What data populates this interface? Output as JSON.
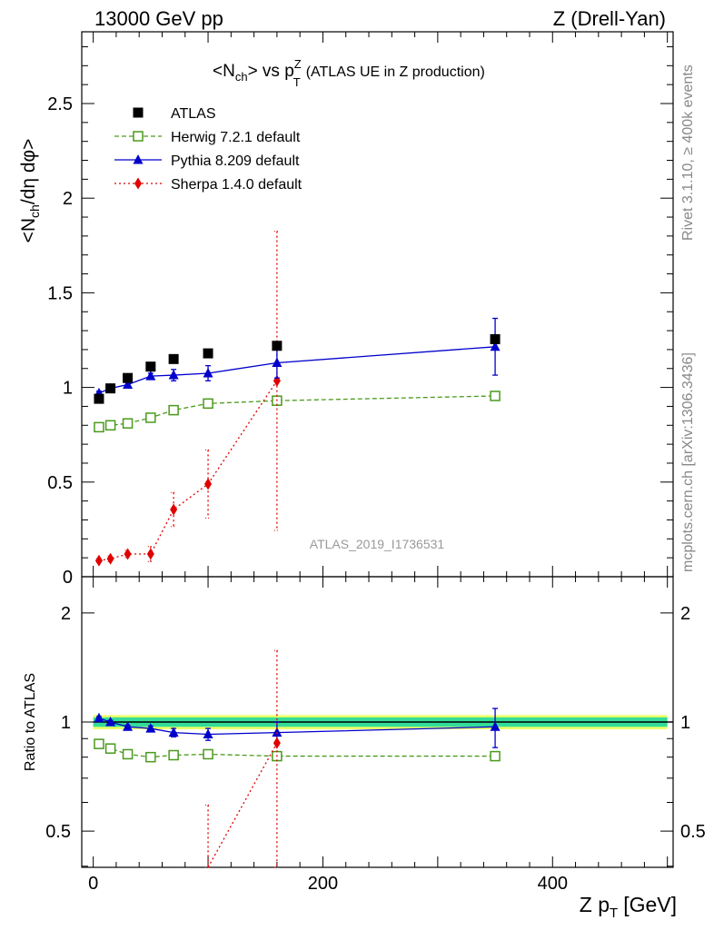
{
  "header": {
    "left": "13000 GeV pp",
    "right": "Z (Drell-Yan)"
  },
  "title": {
    "prefix": "<N",
    "prefix_sub": "ch",
    "middle": "> vs p",
    "pt_sup": "Z",
    "pt_sub": "T",
    "suffix": "(ATLAS UE in Z production)"
  },
  "side_labels": {
    "rivet": "Rivet 3.1.10, ≥ 400k events",
    "mcplots": "mcplots.cern.ch [arXiv:1306.3436]"
  },
  "analysis_id": "ATLAS_2019_I1736531",
  "chart_data": [
    {
      "panel": "main",
      "type": "scatter",
      "xlabel": "Z p_T [GeV]",
      "ylabel": "<N_ch/dη dφ>",
      "xlim": [
        -10,
        505
      ],
      "ylim": [
        0,
        2.9
      ],
      "x_ticks": [
        0,
        200,
        400
      ],
      "y_ticks": [
        0.5,
        1,
        1.5,
        2,
        2.5
      ],
      "y_tick_labels": [
        "0.5",
        "1",
        "1.5",
        "2",
        "2.5"
      ],
      "y_tick_zero_label": "0",
      "legend_position": "top-left",
      "series": [
        {
          "name": "ATLAS",
          "color": "#000000",
          "marker": "square",
          "line": "none",
          "x": [
            5,
            15,
            30,
            50,
            70,
            100,
            160,
            350
          ],
          "y": [
            0.94,
            0.995,
            1.05,
            1.11,
            1.15,
            1.18,
            1.22,
            1.255
          ]
        },
        {
          "name": "Herwig 7.2.1 default",
          "color": "#4a9a1c",
          "marker": "open-square",
          "line": "dashed",
          "x": [
            5,
            15,
            30,
            50,
            70,
            100,
            160,
            350
          ],
          "y": [
            0.79,
            0.8,
            0.81,
            0.84,
            0.88,
            0.915,
            0.93,
            0.955
          ]
        },
        {
          "name": "Pythia 8.209 default",
          "color": "#0000cc",
          "marker": "triangle",
          "line": "solid",
          "x": [
            5,
            15,
            30,
            50,
            70,
            100,
            160,
            350
          ],
          "y": [
            0.97,
            0.995,
            1.015,
            1.06,
            1.065,
            1.075,
            1.13,
            1.215
          ],
          "err": [
            0.01,
            0.01,
            0.01,
            0.015,
            0.03,
            0.04,
            0.08,
            0.15
          ]
        },
        {
          "name": "Sherpa 1.4.0 default",
          "color": "#e00000",
          "marker": "diamond",
          "line": "dotted",
          "x": [
            5,
            15,
            30,
            50,
            70,
            100,
            160
          ],
          "y": [
            0.085,
            0.095,
            0.12,
            0.12,
            0.355,
            0.49,
            1.035
          ],
          "err": [
            0.01,
            0.015,
            0.02,
            0.04,
            0.09,
            0.18,
            0.79
          ]
        }
      ]
    },
    {
      "panel": "ratio",
      "type": "scatter",
      "ylabel": "Ratio to ATLAS",
      "xlim": [
        -10,
        505
      ],
      "ylim": [
        0.35,
        2.35
      ],
      "scale": "log",
      "y_ticks": [
        0.5,
        1,
        2
      ],
      "y_tick_labels": [
        "0.5",
        "1",
        "2"
      ],
      "reference_band": {
        "inner": [
          0.97,
          1.03
        ],
        "outer": [
          0.955,
          1.045
        ],
        "inner_color": "#33dd99",
        "outer_color": "#eeff66"
      },
      "series": [
        {
          "name": "Herwig 7.2.1 default",
          "color": "#4a9a1c",
          "marker": "open-square",
          "line": "dashed",
          "x": [
            5,
            15,
            30,
            50,
            70,
            100,
            160,
            350
          ],
          "y": [
            0.87,
            0.845,
            0.815,
            0.8,
            0.81,
            0.815,
            0.805,
            0.805
          ]
        },
        {
          "name": "Pythia 8.209 default",
          "color": "#0000cc",
          "marker": "triangle",
          "line": "solid",
          "x": [
            5,
            15,
            30,
            50,
            70,
            100,
            160,
            350
          ],
          "y": [
            1.025,
            1.0,
            0.97,
            0.96,
            0.935,
            0.925,
            0.935,
            0.97
          ],
          "err": [
            0.01,
            0.01,
            0.01,
            0.015,
            0.025,
            0.035,
            0.065,
            0.12
          ]
        },
        {
          "name": "Sherpa 1.4.0 default",
          "color": "#e00000",
          "marker": "diamond",
          "line": "dotted",
          "x": [
            100,
            160
          ],
          "y": [
            0.37,
            0.875
          ],
          "err": [
            0.22,
            0.7
          ]
        }
      ]
    }
  ]
}
